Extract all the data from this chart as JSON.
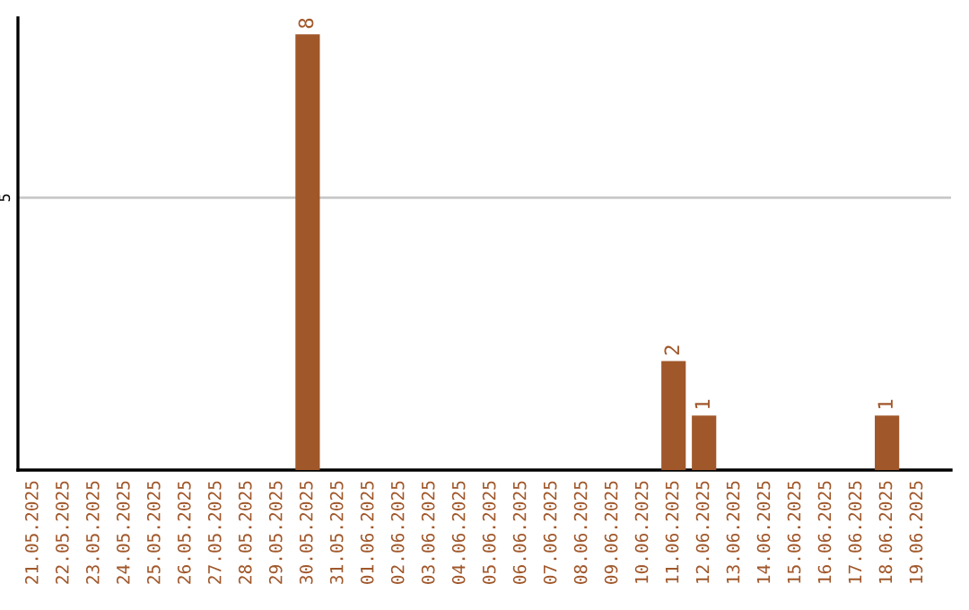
{
  "chart_data": {
    "type": "bar",
    "categories": [
      "21.05.2025",
      "22.05.2025",
      "23.05.2025",
      "24.05.2025",
      "25.05.2025",
      "26.05.2025",
      "27.05.2025",
      "28.05.2025",
      "29.05.2025",
      "30.05.2025",
      "31.05.2025",
      "01.06.2025",
      "02.06.2025",
      "03.06.2025",
      "04.06.2025",
      "05.06.2025",
      "06.06.2025",
      "07.06.2025",
      "08.06.2025",
      "09.06.2025",
      "10.06.2025",
      "11.06.2025",
      "12.06.2025",
      "13.06.2025",
      "14.06.2025",
      "15.06.2025",
      "16.06.2025",
      "17.06.2025",
      "18.06.2025",
      "19.06.2025"
    ],
    "values": [
      0,
      0,
      0,
      0,
      0,
      0,
      0,
      0,
      0,
      8,
      0,
      0,
      0,
      0,
      0,
      0,
      0,
      0,
      0,
      0,
      0,
      2,
      1,
      0,
      0,
      0,
      0,
      0,
      1,
      0
    ],
    "value_labels": [
      null,
      null,
      null,
      null,
      null,
      null,
      null,
      null,
      null,
      "8",
      null,
      null,
      null,
      null,
      null,
      null,
      null,
      null,
      null,
      null,
      null,
      "2",
      "1",
      null,
      null,
      null,
      null,
      null,
      "1",
      null
    ],
    "color": "#a0572a",
    "ylim": [
      0,
      8.3
    ],
    "yticks": [
      5
    ],
    "grid": "y"
  }
}
